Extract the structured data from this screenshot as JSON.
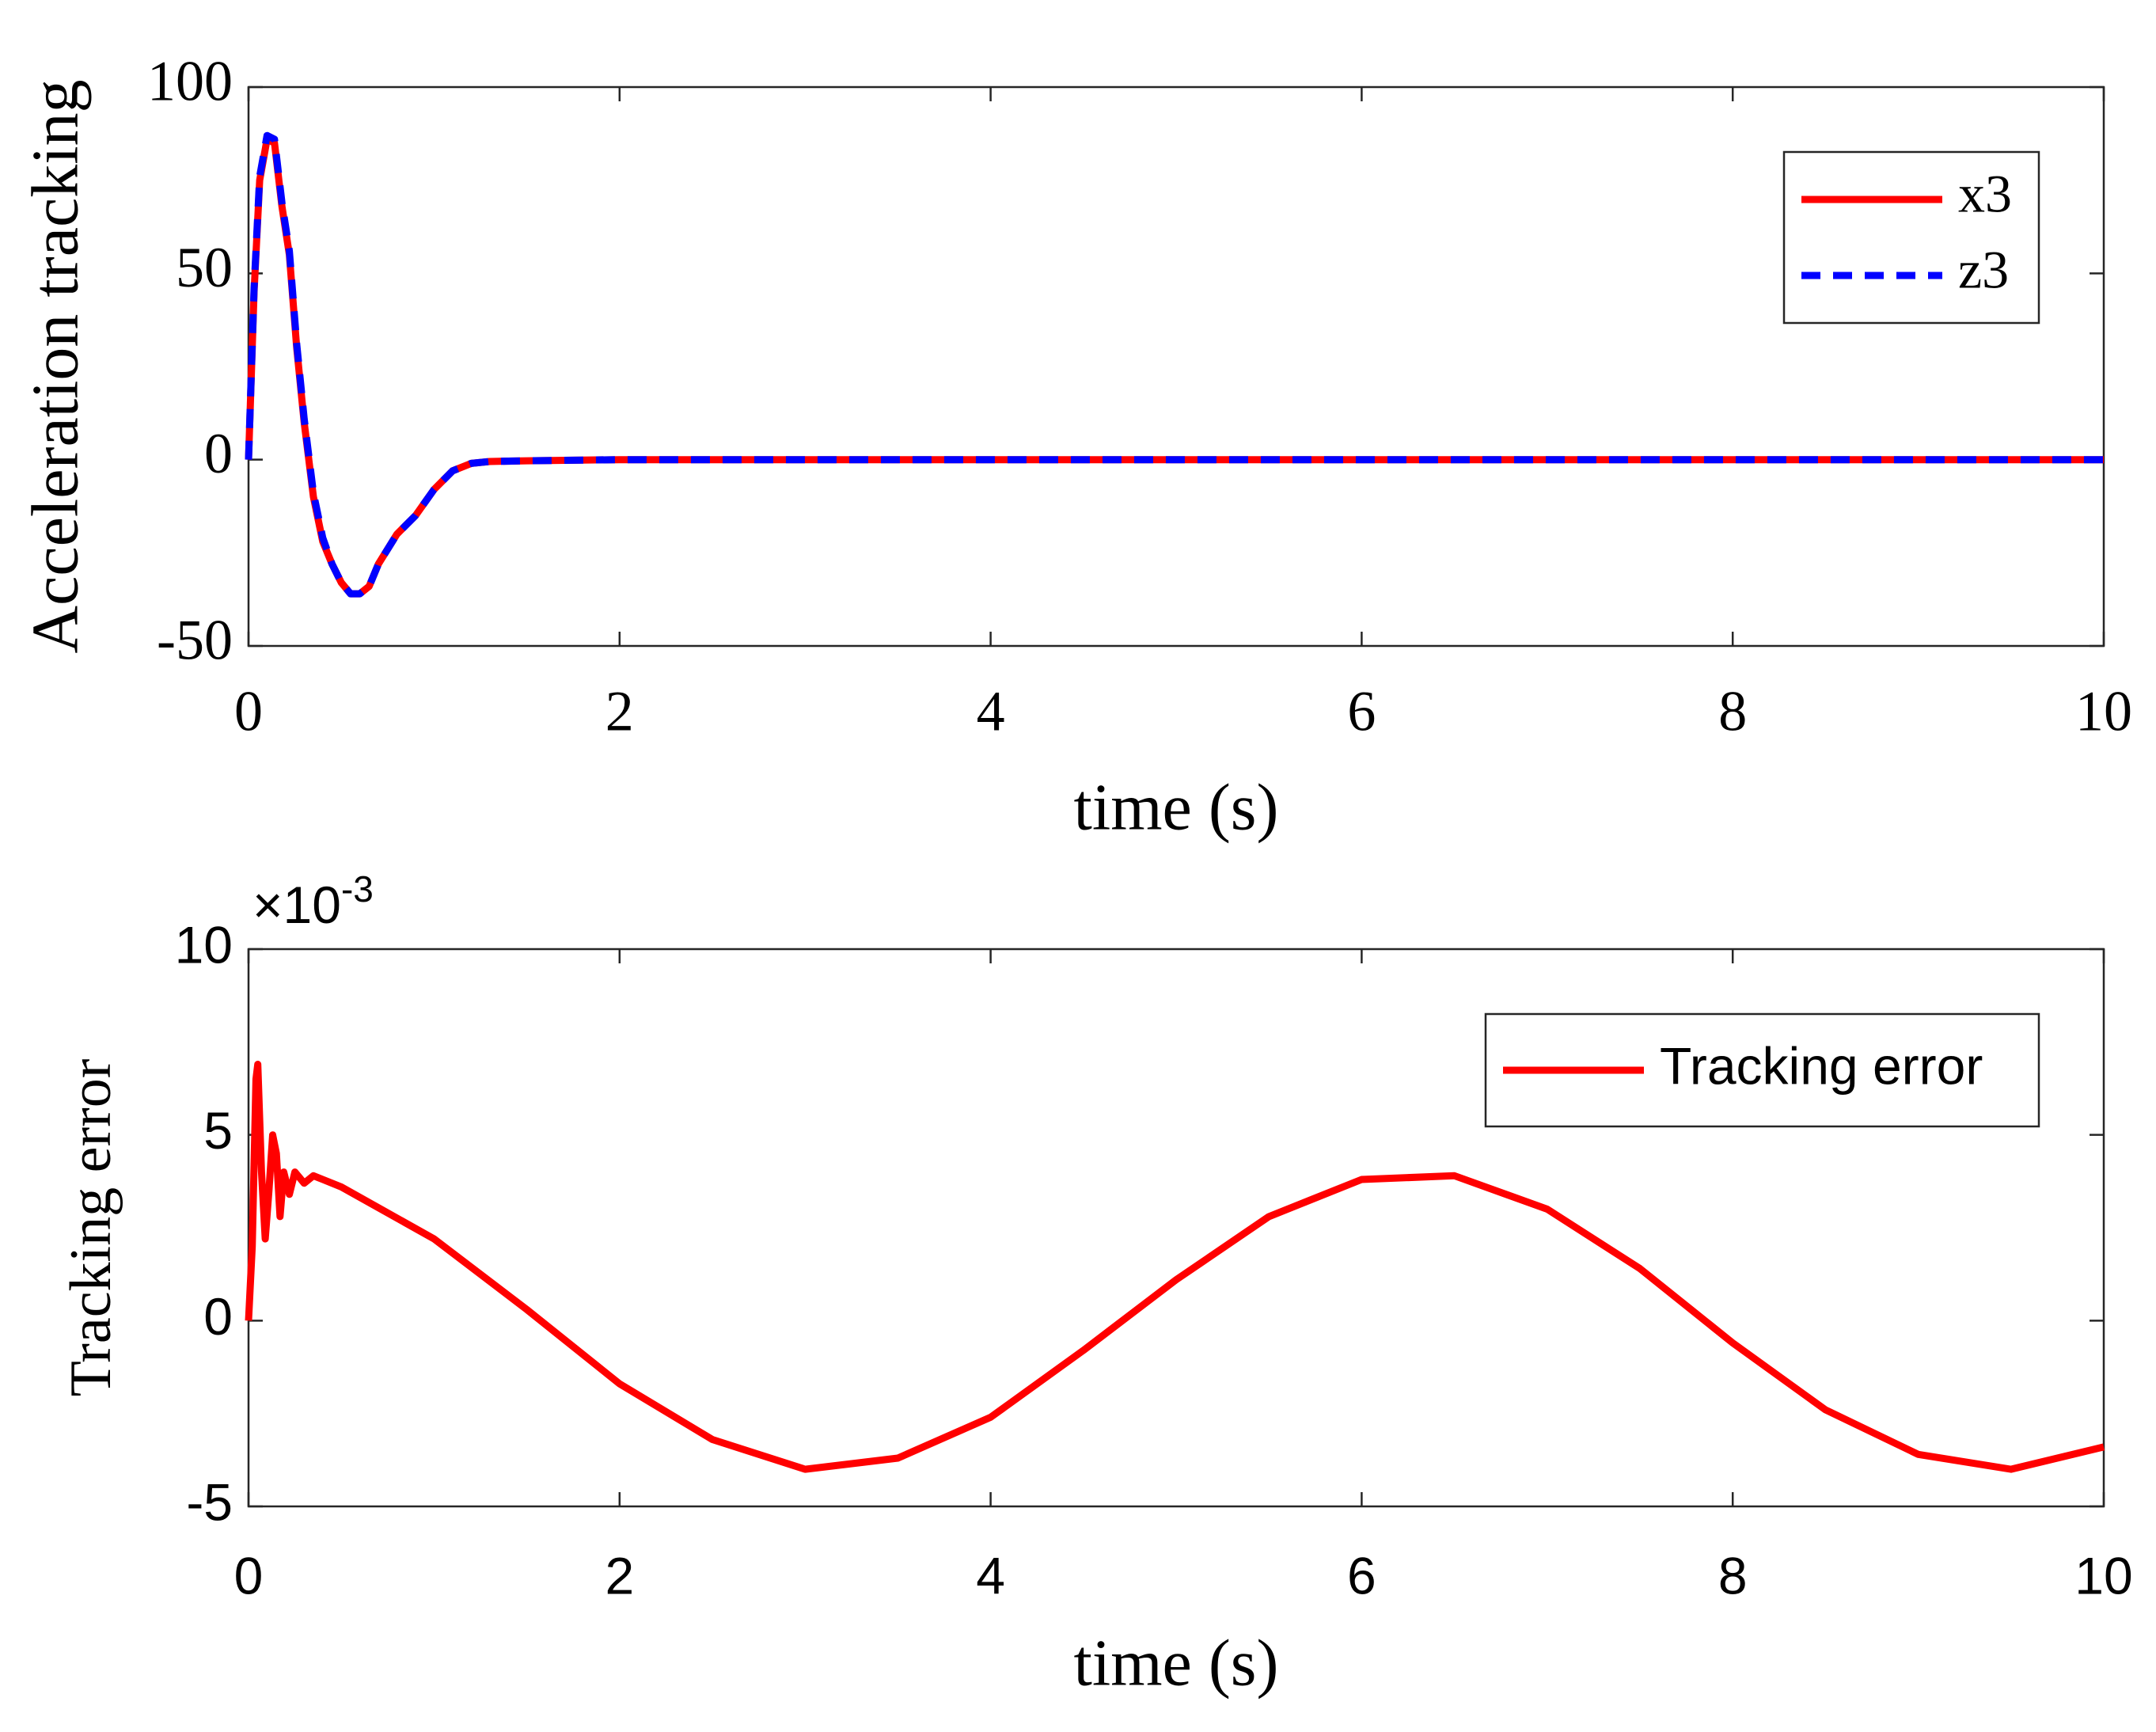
{
  "chart_data": [
    {
      "type": "line",
      "x_label": "time (s)",
      "y_label": "Acceleration tracking",
      "xlim": [
        0,
        10
      ],
      "ylim": [
        -50,
        100
      ],
      "xticks": [
        0,
        2,
        4,
        6,
        8,
        10
      ],
      "yticks": [
        -50,
        0,
        50,
        100
      ],
      "legend": "upper right",
      "x": [
        0,
        0.03,
        0.06,
        0.1,
        0.14,
        0.18,
        0.22,
        0.26,
        0.3,
        0.35,
        0.4,
        0.45,
        0.5,
        0.55,
        0.6,
        0.65,
        0.7,
        0.8,
        0.9,
        1.0,
        1.1,
        1.2,
        1.3,
        1.5,
        2,
        3,
        4,
        5,
        6,
        7,
        8,
        9,
        10
      ],
      "series": [
        {
          "name": "x3",
          "color": "#ff0000",
          "line_style": "solid",
          "values": [
            0,
            45,
            75,
            86,
            85,
            68,
            55,
            30,
            10,
            -10,
            -22,
            -28,
            -33,
            -36,
            -36,
            -34,
            -28,
            -20,
            -15,
            -8,
            -3,
            -1,
            -0.5,
            -0.3,
            0,
            0,
            0,
            0,
            0,
            0,
            0,
            0,
            0
          ]
        },
        {
          "name": "z3",
          "color": "#0000ff",
          "line_style": "dashed",
          "values": [
            0,
            46,
            76,
            87,
            86,
            69,
            56,
            31,
            11,
            -9,
            -21,
            -28,
            -33,
            -36,
            -36,
            -34,
            -28,
            -20,
            -15,
            -8,
            -3,
            -1,
            -0.5,
            -0.3,
            0,
            0,
            0,
            0,
            0,
            0,
            0,
            0,
            0
          ]
        }
      ]
    },
    {
      "type": "line",
      "x_label": "time (s)",
      "y_label": "Tracking error",
      "y_multiplier": {
        "base": "×10",
        "exponent": "-3"
      },
      "xlim": [
        0,
        10
      ],
      "ylim": [
        -0.005,
        0.01
      ],
      "xticks": [
        0,
        2,
        4,
        6,
        8,
        10
      ],
      "yticks": [
        {
          "value": -0.005,
          "label": "-5"
        },
        {
          "value": 0,
          "label": "0"
        },
        {
          "value": 0.005,
          "label": "5"
        },
        {
          "value": 0.01,
          "label": "10"
        }
      ],
      "legend": "upper right",
      "x": [
        0,
        0.02,
        0.04,
        0.05,
        0.07,
        0.09,
        0.11,
        0.13,
        0.15,
        0.17,
        0.19,
        0.22,
        0.25,
        0.3,
        0.35,
        0.4,
        0.5,
        1.0,
        1.5,
        2.0,
        2.5,
        3.0,
        3.5,
        4.0,
        4.5,
        5.0,
        5.5,
        6.0,
        6.5,
        7.0,
        7.5,
        8.0,
        8.5,
        9.0,
        9.5,
        10
      ],
      "series": [
        {
          "name": "Tracking error",
          "color": "#ff0000",
          "line_style": "solid",
          "values": [
            0,
            0.002,
            0.0065,
            0.0069,
            0.004,
            0.0022,
            0.0035,
            0.005,
            0.0045,
            0.0028,
            0.004,
            0.0034,
            0.004,
            0.0037,
            0.0039,
            0.0038,
            0.0036,
            0.0022,
            0.0003,
            -0.0017,
            -0.0032,
            -0.004,
            -0.0037,
            -0.0026,
            -0.0008,
            0.0011,
            0.0028,
            0.0038,
            0.0039,
            0.003,
            0.0014,
            -0.0006,
            -0.0024,
            -0.0036,
            -0.004,
            -0.0034
          ]
        }
      ]
    }
  ]
}
